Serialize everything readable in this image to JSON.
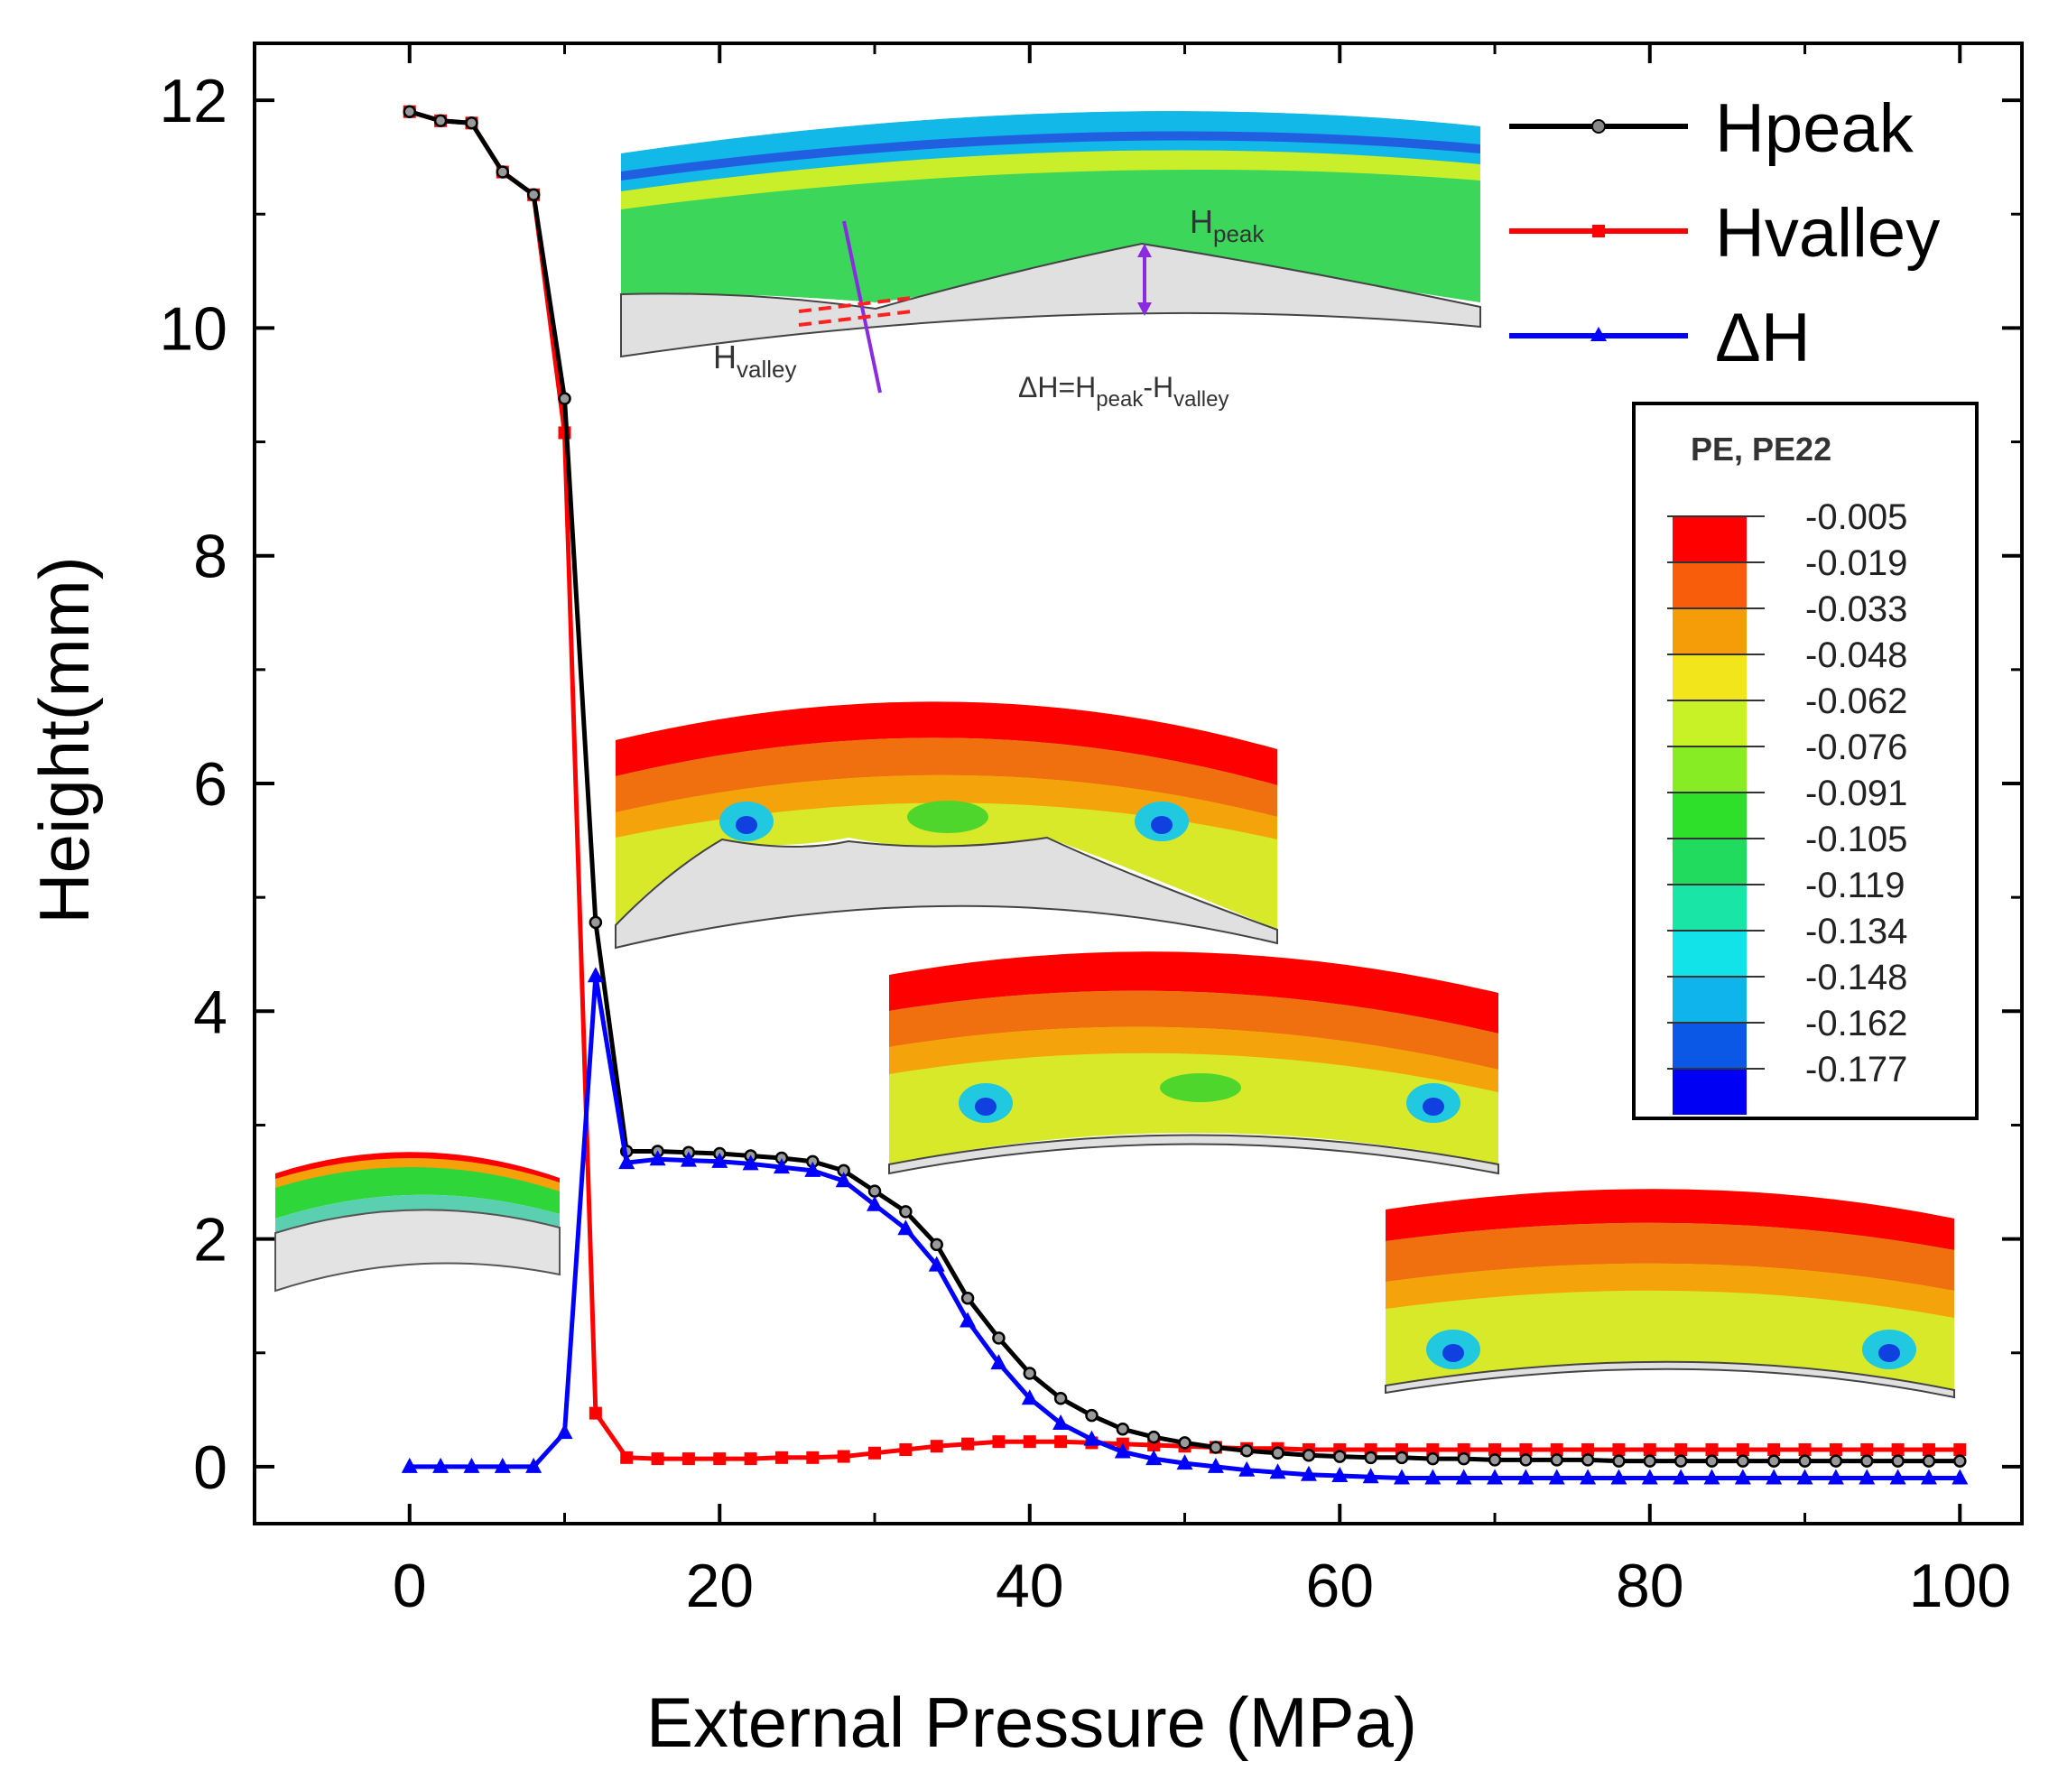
{
  "chart_data": {
    "type": "line",
    "xlabel": "External Pressure (MPa)",
    "ylabel": "Height(mm)",
    "xlim": [
      -10,
      104
    ],
    "ylim": [
      -0.5,
      12.5
    ],
    "xticks": [
      0,
      20,
      40,
      60,
      80,
      100
    ],
    "yticks": [
      0,
      2,
      4,
      6,
      8,
      10,
      12
    ],
    "legend_position": "top-right",
    "series": [
      {
        "name": "Hpeak",
        "color": "#000000",
        "marker": "circle",
        "x": [
          0,
          2,
          4,
          6,
          8,
          10,
          12,
          14,
          16,
          18,
          20,
          22,
          24,
          26,
          28,
          30,
          32,
          34,
          36,
          38,
          40,
          42,
          44,
          46,
          48,
          50,
          52,
          54,
          56,
          58,
          60,
          62,
          64,
          66,
          68,
          70,
          72,
          74,
          76,
          78,
          80,
          82,
          84,
          86,
          88,
          90,
          92,
          94,
          96,
          98,
          100
        ],
        "y": [
          11.9,
          11.82,
          11.8,
          11.37,
          11.17,
          9.38,
          4.78,
          2.77,
          2.77,
          2.76,
          2.75,
          2.73,
          2.71,
          2.68,
          2.6,
          2.42,
          2.24,
          1.95,
          1.48,
          1.13,
          0.82,
          0.6,
          0.45,
          0.33,
          0.26,
          0.21,
          0.17,
          0.14,
          0.12,
          0.1,
          0.09,
          0.08,
          0.08,
          0.07,
          0.07,
          0.06,
          0.06,
          0.06,
          0.06,
          0.05,
          0.05,
          0.05,
          0.05,
          0.05,
          0.05,
          0.05,
          0.05,
          0.05,
          0.05,
          0.05,
          0.05
        ]
      },
      {
        "name": "Hvalley",
        "color": "#ff0000",
        "marker": "square",
        "x": [
          0,
          2,
          4,
          6,
          8,
          10,
          12,
          14,
          16,
          18,
          20,
          22,
          24,
          26,
          28,
          30,
          32,
          34,
          36,
          38,
          40,
          42,
          44,
          46,
          48,
          50,
          52,
          54,
          56,
          58,
          60,
          62,
          64,
          66,
          68,
          70,
          72,
          74,
          76,
          78,
          80,
          82,
          84,
          86,
          88,
          90,
          92,
          94,
          96,
          98,
          100
        ],
        "y": [
          11.9,
          11.82,
          11.8,
          11.37,
          11.17,
          9.08,
          0.47,
          0.08,
          0.07,
          0.07,
          0.07,
          0.07,
          0.08,
          0.08,
          0.09,
          0.12,
          0.15,
          0.18,
          0.2,
          0.22,
          0.22,
          0.22,
          0.21,
          0.2,
          0.19,
          0.18,
          0.17,
          0.16,
          0.16,
          0.15,
          0.15,
          0.15,
          0.15,
          0.15,
          0.15,
          0.15,
          0.15,
          0.15,
          0.15,
          0.15,
          0.15,
          0.15,
          0.15,
          0.15,
          0.15,
          0.15,
          0.15,
          0.15,
          0.15,
          0.15,
          0.15
        ]
      },
      {
        "name": "ΔH",
        "color": "#0000ff",
        "marker": "triangle",
        "x": [
          0,
          2,
          4,
          6,
          8,
          10,
          12,
          14,
          16,
          18,
          20,
          22,
          24,
          26,
          28,
          30,
          32,
          34,
          36,
          38,
          40,
          42,
          44,
          46,
          48,
          50,
          52,
          54,
          56,
          58,
          60,
          62,
          64,
          66,
          68,
          70,
          72,
          74,
          76,
          78,
          80,
          82,
          84,
          86,
          88,
          90,
          92,
          94,
          96,
          98,
          100
        ],
        "y": [
          0,
          0,
          0,
          0,
          0,
          0.3,
          4.31,
          2.67,
          2.7,
          2.69,
          2.68,
          2.66,
          2.63,
          2.6,
          2.51,
          2.3,
          2.09,
          1.77,
          1.28,
          0.91,
          0.6,
          0.38,
          0.24,
          0.13,
          0.07,
          0.03,
          0.0,
          -0.03,
          -0.05,
          -0.07,
          -0.08,
          -0.09,
          -0.1,
          -0.1,
          -0.1,
          -0.1,
          -0.1,
          -0.1,
          -0.1,
          -0.1,
          -0.1,
          -0.1,
          -0.1,
          -0.1,
          -0.1,
          -0.1,
          -0.1,
          -0.1,
          -0.1,
          -0.1,
          -0.1
        ]
      }
    ],
    "annotations": {
      "hpeak_main": "H",
      "hpeak_sub": "peak",
      "hvalley_main": "H",
      "hvalley_sub": "valley",
      "delta_a": "ΔH=H",
      "delta_b": "peak",
      "delta_c": "-H",
      "delta_d": "valley"
    },
    "colorbar": {
      "title": "PE, PE22",
      "values": [
        "-0.005",
        "-0.019",
        "-0.033",
        "-0.048",
        "-0.062",
        "-0.076",
        "-0.091",
        "-0.105",
        "-0.119",
        "-0.134",
        "-0.148",
        "-0.162",
        "-0.177"
      ],
      "colors": [
        "#ff0000",
        "#f75d0a",
        "#f59d08",
        "#f3e51c",
        "#c9f226",
        "#88ec24",
        "#2ee02a",
        "#21db5e",
        "#19e6a6",
        "#12e3e8",
        "#10b4ec",
        "#0b57e6",
        "#0000f5"
      ]
    }
  }
}
